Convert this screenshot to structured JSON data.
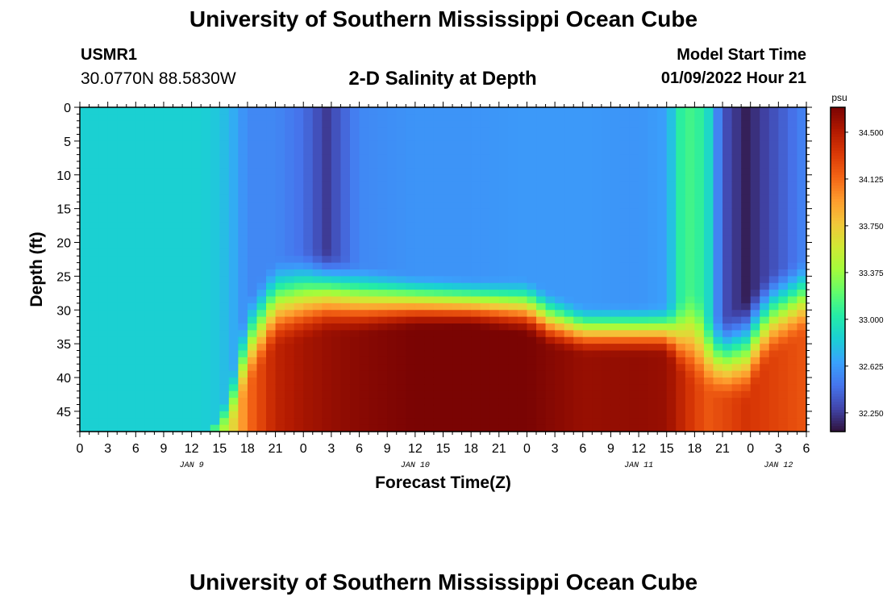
{
  "header": {
    "title": "University of Southern Mississippi Ocean Cube",
    "station_id": "USMR1",
    "coordinates": "30.0770N  88.5830W",
    "chart_title": "2-D Salinity at Depth",
    "model_start_label": "Model Start Time",
    "model_start_value": "01/09/2022 Hour 21"
  },
  "footer": {
    "title": "University of Southern Mississippi Ocean Cube"
  },
  "colors": {
    "background": "#ffffff",
    "colormap": [
      "#30123b",
      "#4145ab",
      "#4675ed",
      "#39a2fc",
      "#1bcfd4",
      "#24eca6",
      "#61fc6c",
      "#a4fc3b",
      "#d1e834",
      "#f3c63a",
      "#fe9b2d",
      "#f36315",
      "#d93806",
      "#b11901",
      "#7a0403"
    ]
  },
  "chart_data": {
    "type": "heatmap",
    "title": "2-D Salinity at Depth",
    "xlabel": "Forecast Time(Z)",
    "ylabel": "Depth (ft)",
    "x_tick_labels": [
      "0",
      "3",
      "6",
      "9",
      "12",
      "15",
      "18",
      "21",
      "0",
      "3",
      "6",
      "9",
      "12",
      "15",
      "18",
      "21",
      "0",
      "3",
      "6",
      "9",
      "12",
      "15",
      "18",
      "21",
      "0",
      "3",
      "6"
    ],
    "x_tick_hours": [
      0,
      3,
      6,
      9,
      12,
      15,
      18,
      21,
      24,
      27,
      30,
      33,
      36,
      39,
      42,
      45,
      48,
      51,
      54,
      57,
      60,
      63,
      66,
      69,
      72,
      75,
      78
    ],
    "day_labels": [
      {
        "text": "JAN 9",
        "hour": 12
      },
      {
        "text": "JAN 10",
        "hour": 36
      },
      {
        "text": "JAN 11",
        "hour": 60
      },
      {
        "text": "JAN 12",
        "hour": 75
      }
    ],
    "xlim": [
      0,
      78
    ],
    "y_ticks": [
      0,
      5,
      10,
      15,
      20,
      25,
      30,
      35,
      40,
      45
    ],
    "ylim": [
      48,
      0
    ],
    "y_inverted": true,
    "colorbar": {
      "unit": "psu",
      "ticks": [
        "32.250",
        "32.625",
        "33.000",
        "33.375",
        "33.750",
        "34.125",
        "34.500"
      ],
      "range": [
        32.1,
        34.7
      ]
    },
    "profile_hours": [
      0,
      9,
      13,
      15,
      16.5,
      18,
      21,
      24,
      26.5,
      30,
      36,
      42,
      48,
      50.5,
      54,
      60,
      63,
      64.5,
      66,
      67.5,
      69,
      71.5,
      74,
      78
    ],
    "surface_salinity": [
      32.85,
      32.85,
      32.85,
      32.8,
      32.7,
      32.55,
      32.55,
      32.45,
      32.25,
      32.55,
      32.6,
      32.6,
      32.62,
      32.62,
      32.62,
      32.6,
      32.65,
      33.05,
      33.15,
      32.9,
      32.35,
      32.15,
      32.3,
      32.55
    ],
    "upper_depth_ft": [
      48,
      48,
      48,
      46,
      38,
      28,
      22,
      21,
      21,
      23,
      24.5,
      25,
      25,
      27,
      29,
      29,
      29,
      28,
      26,
      30,
      31,
      28,
      24,
      22
    ],
    "bottom_salinity": [
      32.85,
      32.9,
      33.0,
      33.3,
      33.7,
      34.1,
      34.45,
      34.55,
      34.6,
      34.65,
      34.7,
      34.72,
      34.7,
      34.66,
      34.6,
      34.62,
      34.6,
      34.45,
      34.3,
      34.2,
      34.25,
      34.35,
      34.3,
      34.2
    ],
    "bottom_depth_ft": [
      48,
      48,
      48,
      48,
      47,
      42,
      36,
      35,
      34,
      34,
      33,
      33,
      34,
      36,
      37,
      37,
      37,
      40,
      42,
      43,
      44,
      44,
      38,
      34
    ]
  }
}
